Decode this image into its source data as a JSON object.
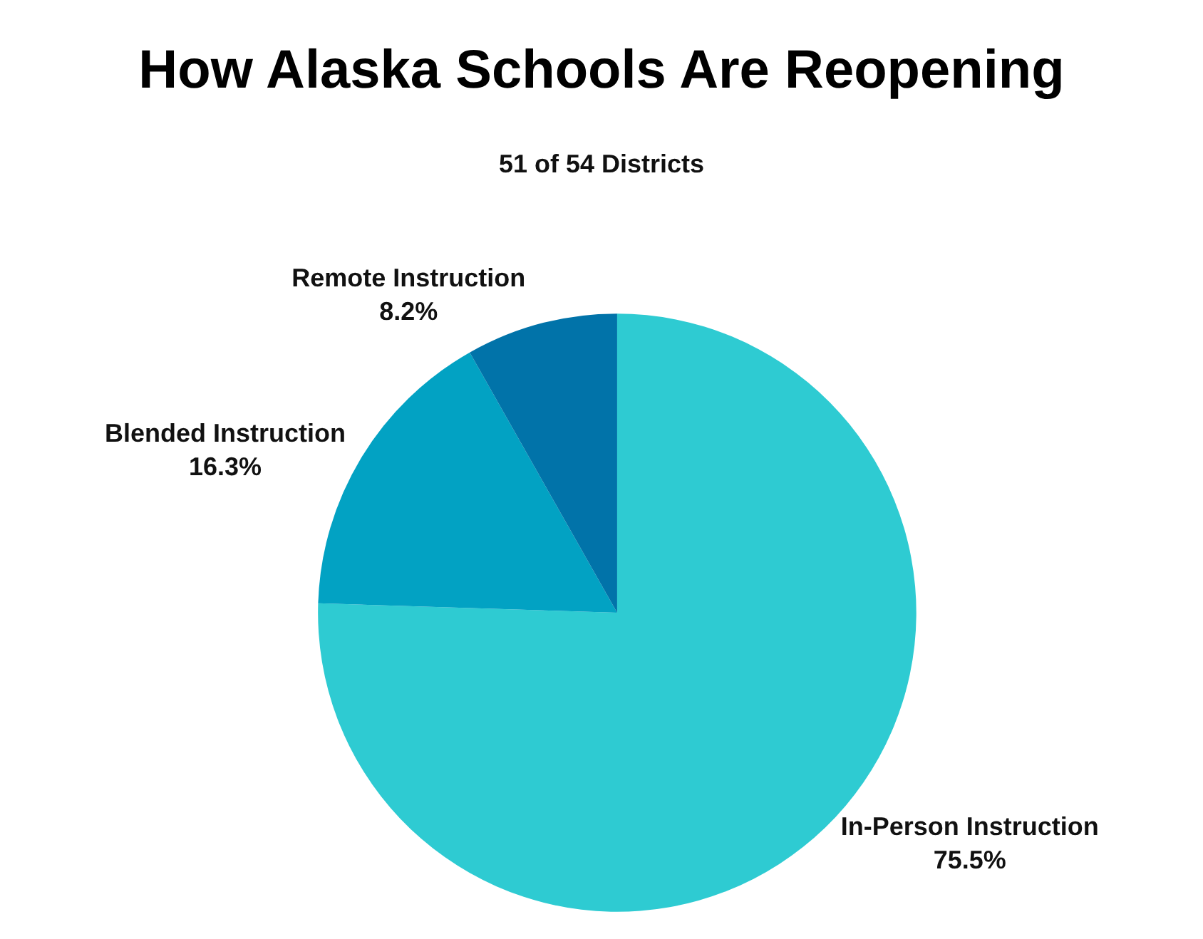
{
  "chart_data": {
    "type": "pie",
    "title": "How Alaska Schools Are Reopening",
    "subtitle": "51 of 54 Districts",
    "categories": [
      "In-Person Instruction",
      "Blended Instruction",
      "Remote Instruction"
    ],
    "values": [
      75.5,
      16.3,
      8.2
    ],
    "value_labels": [
      "75.5%",
      "16.3%",
      "8.2%"
    ],
    "colors": [
      "#2ecbd2",
      "#02a2c3",
      "#0173a9"
    ],
    "legend": false
  }
}
